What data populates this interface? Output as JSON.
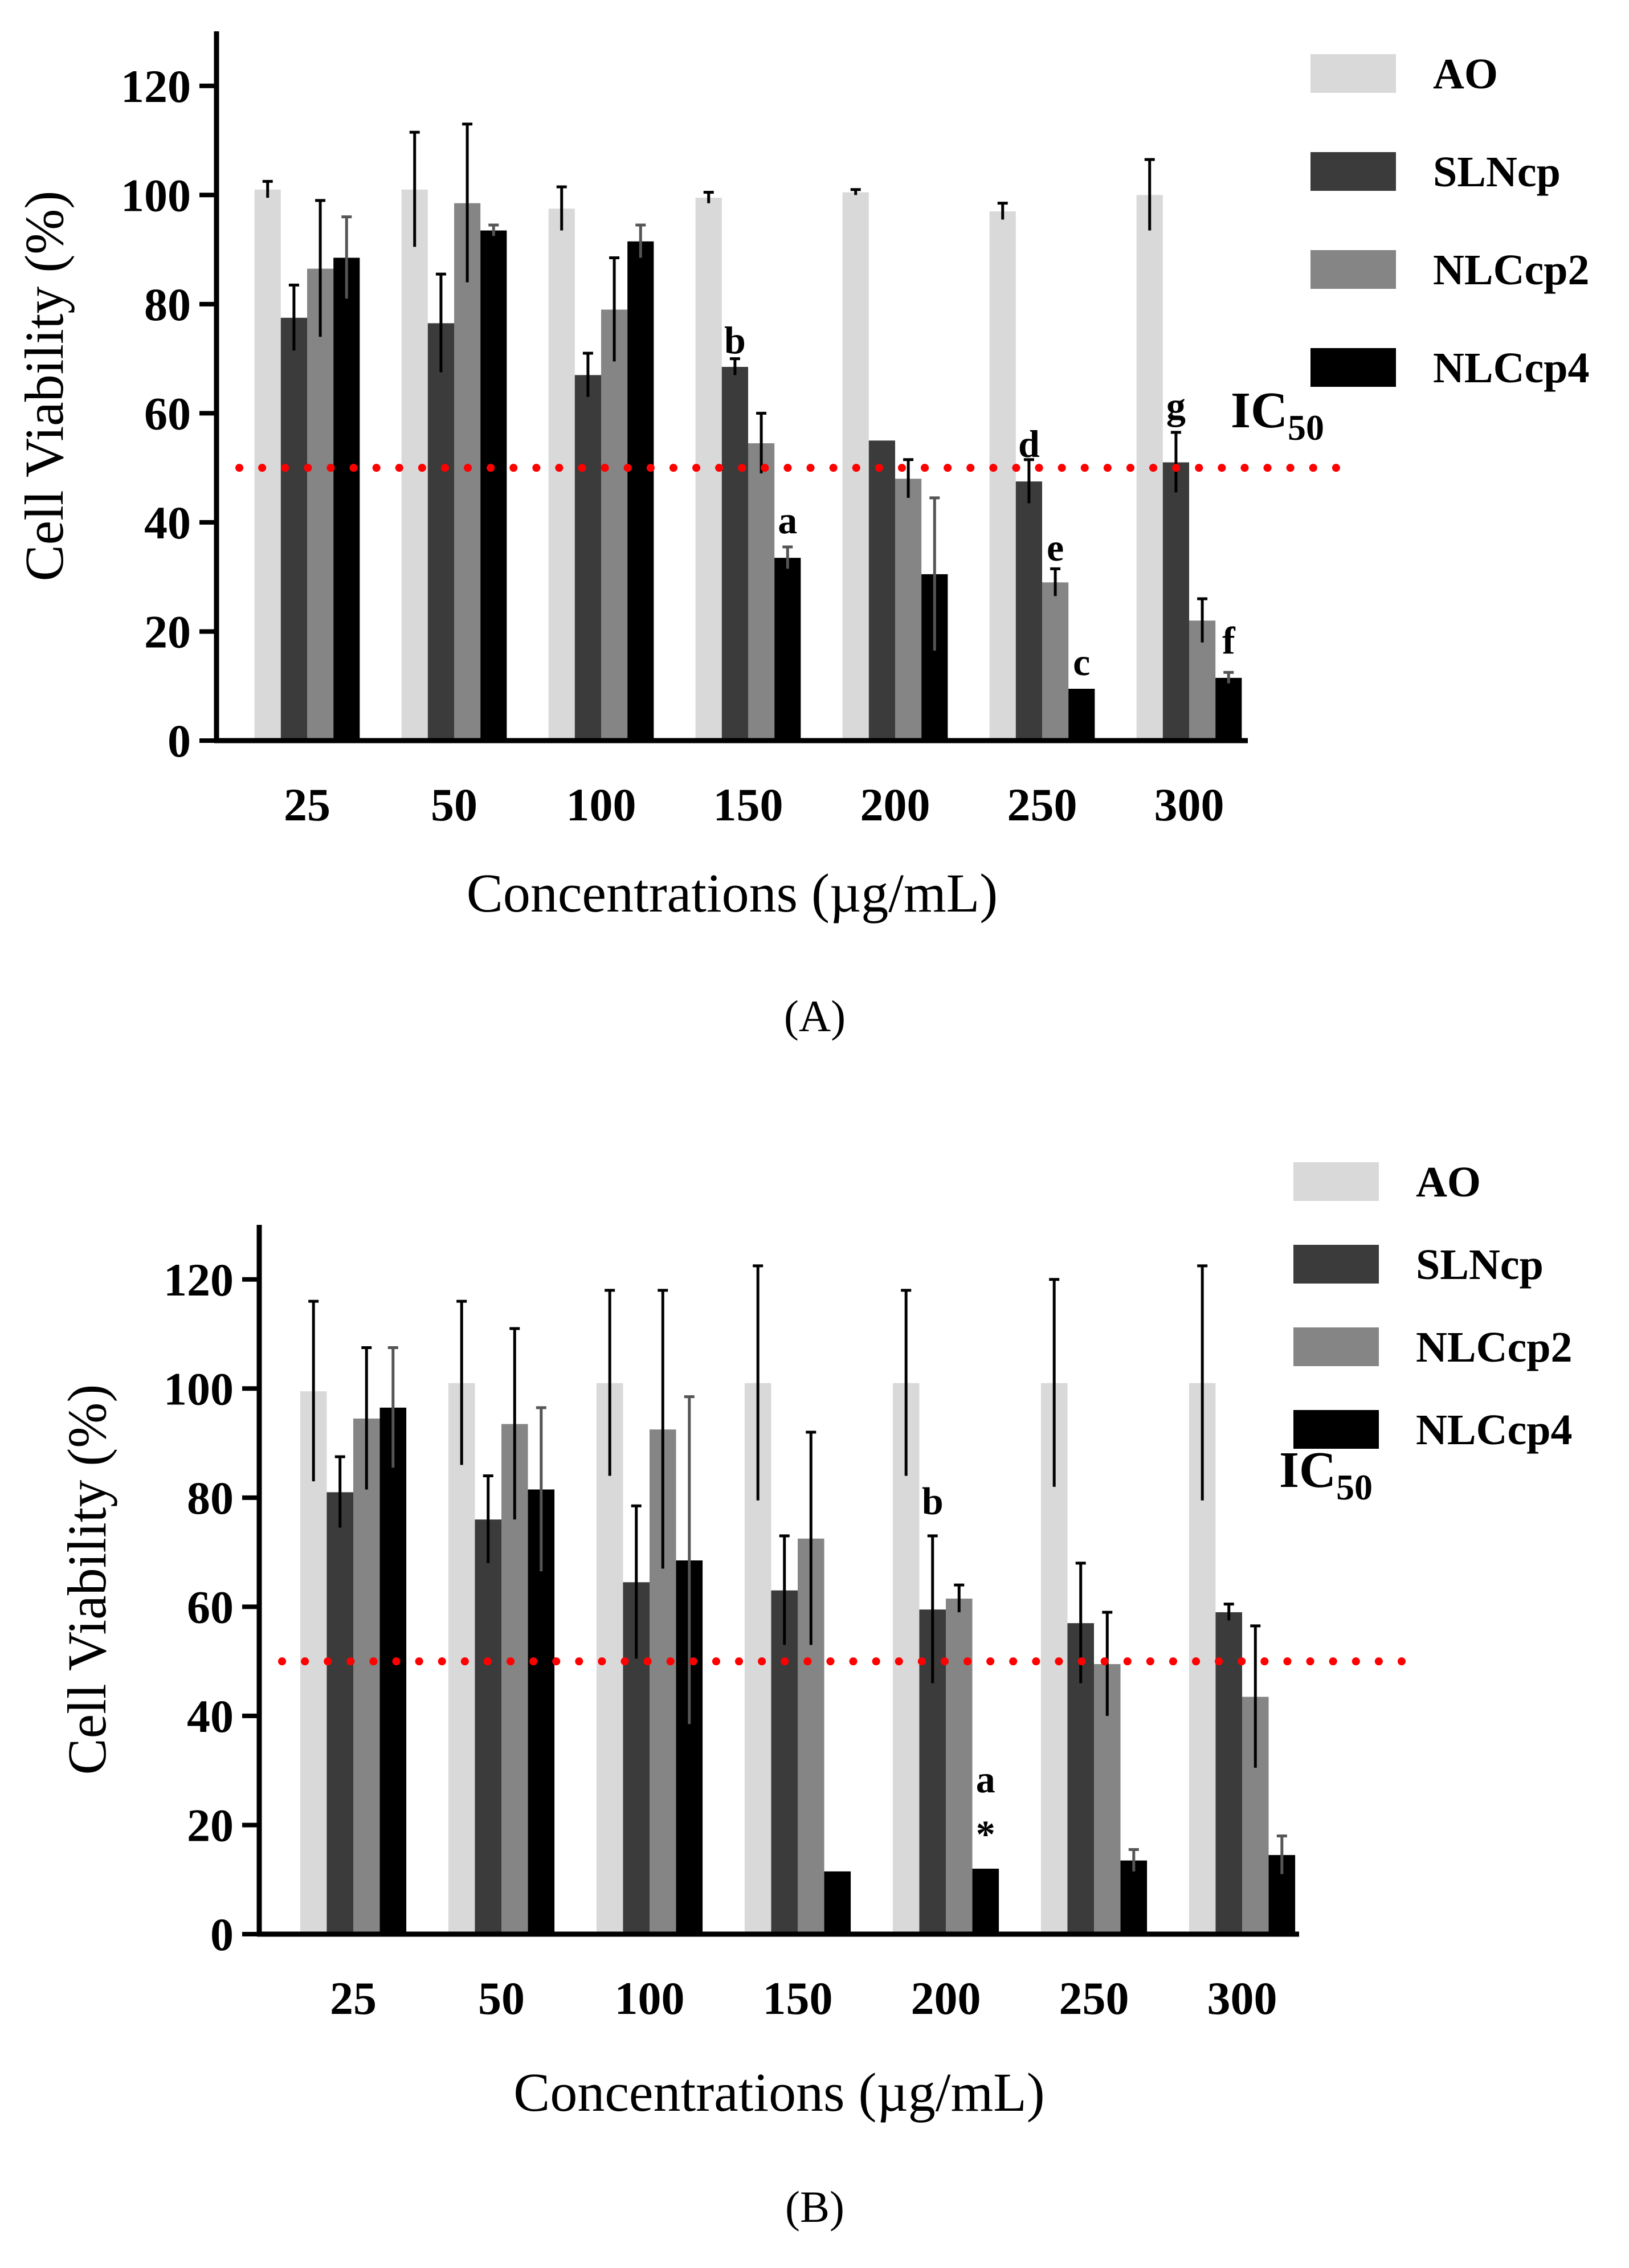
{
  "chart_data": [
    {
      "type": "bar",
      "panel_label": "(A)",
      "xlabel": "Concentrations (µg/mL)",
      "ylabel": "Cell Viability (%)",
      "ylim": [
        0,
        130
      ],
      "yticks": [
        0,
        20,
        40,
        60,
        80,
        100,
        120
      ],
      "categories": [
        "25",
        "50",
        "100",
        "150",
        "200",
        "250",
        "300"
      ],
      "threshold": {
        "label_main": "IC",
        "label_sub": "50",
        "value": 50,
        "color": "#ff0000"
      },
      "series": [
        {
          "name": "AO",
          "color": "#d9d9d9",
          "values": [
            101,
            101,
            97.5,
            99.5,
            100.5,
            97,
            100
          ],
          "errors": [
            1.5,
            10.5,
            4,
            1,
            0.5,
            1.5,
            6.5
          ]
        },
        {
          "name": "SLNcp",
          "color": "#3b3b3b",
          "values": [
            77.5,
            76.5,
            67,
            68.5,
            55,
            47.5,
            51
          ],
          "errors": [
            6,
            9,
            4,
            1.5,
            0,
            4,
            5.5
          ]
        },
        {
          "name": "NLCcp2",
          "color": "#858585",
          "values": [
            86.5,
            98.5,
            79,
            54.5,
            48,
            29,
            22
          ],
          "errors": [
            12.5,
            14.5,
            9.5,
            5.5,
            3.5,
            2.5,
            4
          ]
        },
        {
          "name": "NLCcp4",
          "color": "#000000",
          "values": [
            88.5,
            93.5,
            91.5,
            33.5,
            30.5,
            9.5,
            11.5
          ],
          "errors": [
            7.5,
            1,
            3,
            2,
            14,
            0,
            1
          ]
        }
      ],
      "annotations": [
        {
          "text": "b",
          "category": 3,
          "series": 1,
          "y": 71
        },
        {
          "text": "a",
          "category": 3,
          "series": 3,
          "y": 38
        },
        {
          "text": "d",
          "category": 5,
          "series": 1,
          "y": 52
        },
        {
          "text": "e",
          "category": 5,
          "series": 2,
          "y": 33
        },
        {
          "text": "c",
          "category": 5,
          "series": 3,
          "y": 12
        },
        {
          "text": "g",
          "category": 6,
          "series": 1,
          "y": 59
        },
        {
          "text": "f",
          "category": 6,
          "series": 3,
          "y": 16
        }
      ]
    },
    {
      "type": "bar",
      "panel_label": "(B)",
      "xlabel": "Concentrations (µg/mL)",
      "ylabel": "Cell Viability (%)",
      "ylim": [
        0,
        130
      ],
      "yticks": [
        0,
        20,
        40,
        60,
        80,
        100,
        120
      ],
      "categories": [
        "25",
        "50",
        "100",
        "150",
        "200",
        "250",
        "300"
      ],
      "threshold": {
        "label_main": "IC",
        "label_sub": "50",
        "value": 50,
        "color": "#ff0000"
      },
      "series": [
        {
          "name": "AO",
          "color": "#d9d9d9",
          "values": [
            99.5,
            101,
            101,
            101,
            101,
            101,
            101
          ],
          "errors": [
            16.5,
            15,
            17,
            21.5,
            17,
            19,
            21.5
          ]
        },
        {
          "name": "SLNcp",
          "color": "#3b3b3b",
          "values": [
            81,
            76,
            64.5,
            63,
            59.5,
            57,
            59
          ],
          "errors": [
            6.5,
            8,
            14,
            10,
            13.5,
            11,
            1.5
          ]
        },
        {
          "name": "NLCcp2",
          "color": "#858585",
          "values": [
            94.5,
            93.5,
            92.5,
            72.5,
            61.5,
            49.5,
            43.5
          ],
          "errors": [
            13,
            17.5,
            25.5,
            19.5,
            2.5,
            9.5,
            13
          ]
        },
        {
          "name": "NLCcp4",
          "color": "#000000",
          "values": [
            96.5,
            81.5,
            68.5,
            11.5,
            12,
            13.5,
            14.5
          ],
          "errors": [
            11,
            15,
            30,
            0,
            0,
            2,
            3.5
          ]
        }
      ],
      "annotations": [
        {
          "text": "b",
          "category": 4,
          "series": 1,
          "y": 77
        },
        {
          "text": "a",
          "category": 4,
          "series": 3,
          "y": 26
        },
        {
          "text": "*",
          "category": 4,
          "series": 3,
          "y": 16
        }
      ]
    }
  ]
}
